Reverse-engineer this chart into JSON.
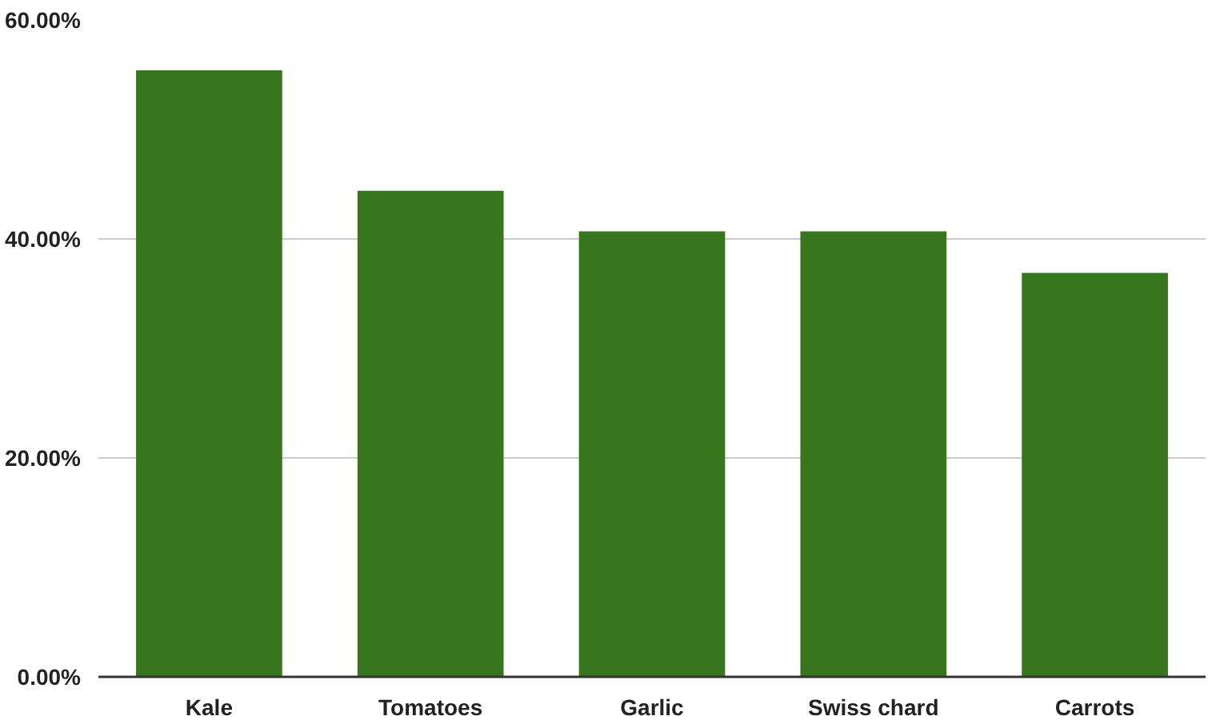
{
  "chart_data": {
    "type": "bar",
    "categories": [
      "Kale",
      "Tomatoes",
      "Garlic",
      "Swiss chard",
      "Carrots"
    ],
    "values": [
      55.4,
      44.4,
      40.7,
      40.7,
      36.9
    ],
    "color": "#38761d",
    "ylim": [
      0,
      60
    ],
    "yticks": [
      {
        "value": 0,
        "label": "0.00%"
      },
      {
        "value": 20,
        "label": "20.00%"
      },
      {
        "value": 40,
        "label": "40.00%"
      },
      {
        "value": 60,
        "label": "60.00%"
      }
    ],
    "grid": "y"
  }
}
